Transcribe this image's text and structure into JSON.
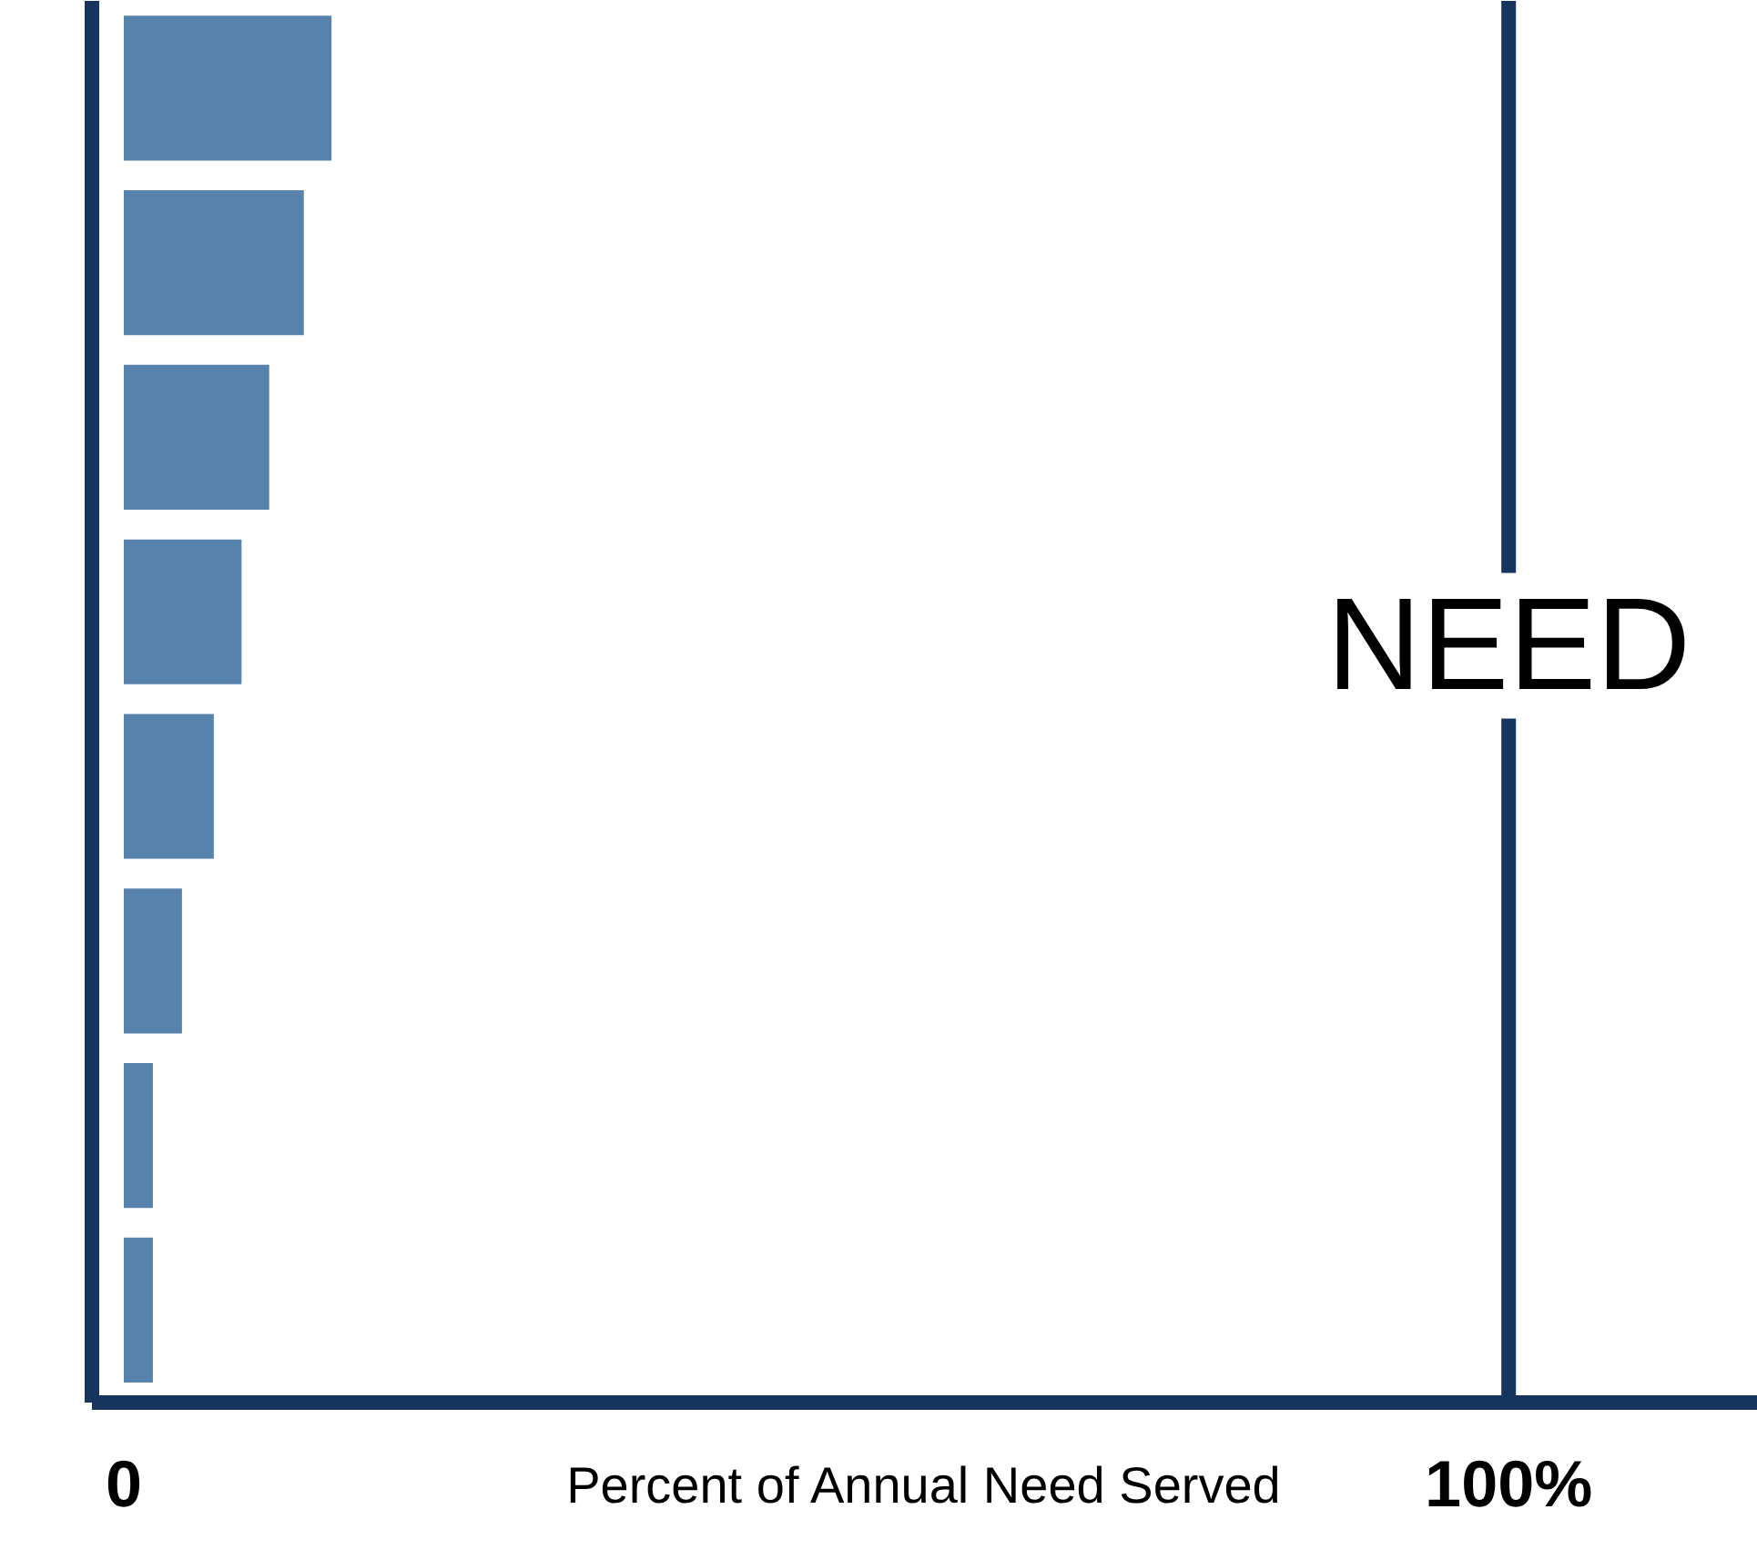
{
  "chart_data": {
    "type": "bar",
    "orientation": "horizontal",
    "xlabel": "Percent of Annual Need Served",
    "categories": [
      null,
      null,
      null,
      null,
      null,
      null,
      null,
      null
    ],
    "values": [
      15,
      13,
      10.5,
      8.5,
      6.5,
      4.2,
      2.1,
      2.1
    ],
    "color": "#5682ac",
    "xlim": [
      -2.3,
      118
    ],
    "xticks": [
      0,
      {
        "value": 100,
        "label": "100%"
      }
    ],
    "ref_lines": [
      {
        "axis": "x",
        "value": 100,
        "label": "NEED",
        "color": "#15355f"
      }
    ],
    "grid": false
  }
}
